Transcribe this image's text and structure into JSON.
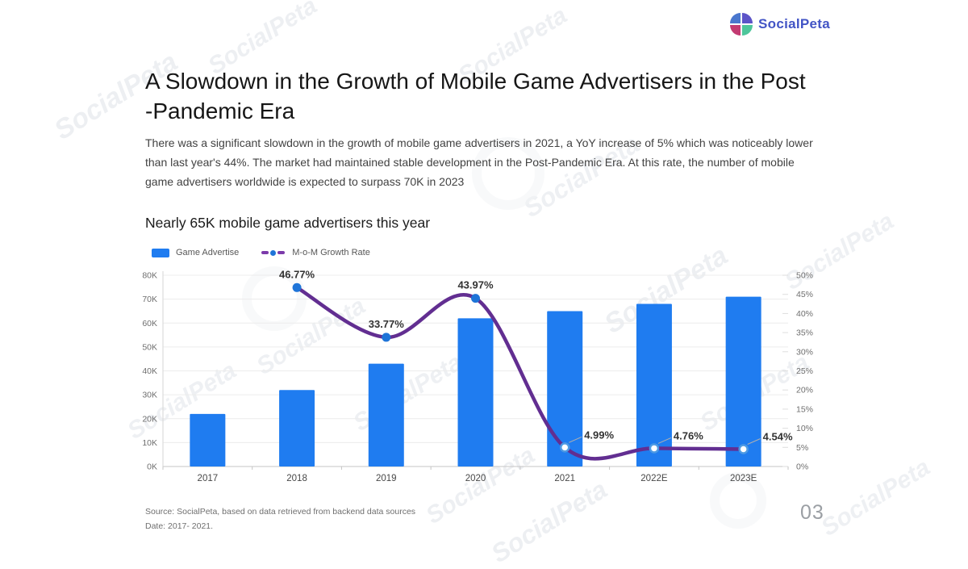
{
  "logo": {
    "text": "SocialPeta",
    "text_color": "#4254C5",
    "quadrant_colors": {
      "tl": "#4A77CE",
      "tr": "#5C54C8",
      "bl": "#C33B72",
      "br": "#4EC69B"
    }
  },
  "header": {
    "title_line1": "A Slowdown in the Growth of Mobile Game Advertisers in the Post",
    "title_line2": "-Pandemic Era",
    "paragraph": "There was a significant slowdown in the growth of mobile game advertisers in 2021, a YoY increase of 5% which was noticeably lower than last year's 44%. The market had maintained stable development in the Post-Pandemic Era. At this rate, the number of mobile game advertisers worldwide is expected to surpass 70K in 2023"
  },
  "chart_section": {
    "subtitle": "Nearly 65K mobile game advertisers this year"
  },
  "legend": {
    "bar_label": "Game Advertise",
    "line_label": "M-o-M Growth Rate"
  },
  "chart_data": {
    "type": "bar",
    "title": "Nearly 65K mobile game advertisers this year",
    "categories": [
      "2017",
      "2018",
      "2019",
      "2020",
      "2021",
      "2022E",
      "2023E"
    ],
    "series": [
      {
        "name": "Game Advertise",
        "type": "bar",
        "axis": "left",
        "values": [
          22000,
          32000,
          43000,
          62000,
          65000,
          68000,
          71000
        ]
      },
      {
        "name": "M-o-M Growth Rate",
        "type": "line",
        "axis": "right",
        "values": [
          null,
          46.77,
          33.77,
          43.97,
          4.99,
          4.76,
          4.54
        ],
        "labels": [
          null,
          "46.77%",
          "33.77%",
          "43.97%",
          "4.99%",
          "4.76%",
          "4.54%"
        ],
        "marker_styles": [
          null,
          "filled",
          "filled",
          "filled",
          "hollow",
          "hollow",
          "hollow"
        ],
        "label_anchor": [
          null,
          "top",
          "top",
          "top",
          "right",
          "right",
          "right"
        ]
      }
    ],
    "left_axis": {
      "min": 0,
      "max": 80000,
      "ticks": [
        "0K",
        "10K",
        "20K",
        "30K",
        "40K",
        "50K",
        "60K",
        "70K",
        "80K"
      ]
    },
    "right_axis": {
      "min": 0,
      "max": 50,
      "ticks": [
        "0%",
        "5%",
        "10%",
        "15%",
        "20%",
        "25%",
        "30%",
        "35%",
        "40%",
        "45%",
        "50%"
      ]
    },
    "grid": true,
    "legend_position": "top-left",
    "colors": {
      "bar": "#1F7CF0",
      "line": "#622E91",
      "marker_filled": "#1E74D8",
      "marker_hollow_stroke": "#4D9AE4",
      "leader_line": "#b0b0b0",
      "gridline": "#ececec",
      "axis_line": "#c6c6c6"
    }
  },
  "footer": {
    "source_line1": "Source: SocialPeta, based on data retrieved from backend data sources",
    "source_line2": "Date: 2017- 2021.",
    "page_number": "03"
  },
  "watermark": {
    "text": "SocialPeta"
  }
}
